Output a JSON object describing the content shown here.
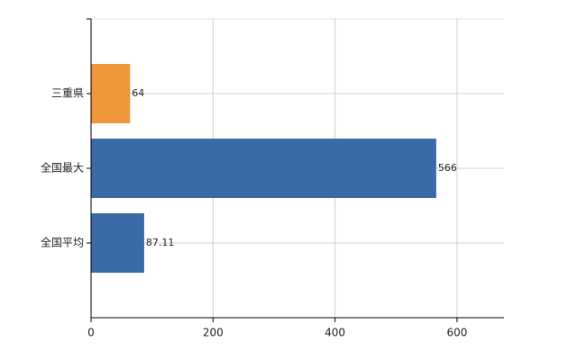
{
  "chart_data": {
    "type": "bar",
    "orientation": "horizontal",
    "categories": [
      "三重県",
      "全国最大",
      "全国平均"
    ],
    "values": [
      64,
      566,
      87.11
    ],
    "colors": [
      "#f0963a",
      "#3b6aa8",
      "#3b6aa8"
    ],
    "xlim": [
      0,
      677
    ],
    "xticks": [
      0,
      200,
      400,
      600
    ],
    "grid": true
  }
}
